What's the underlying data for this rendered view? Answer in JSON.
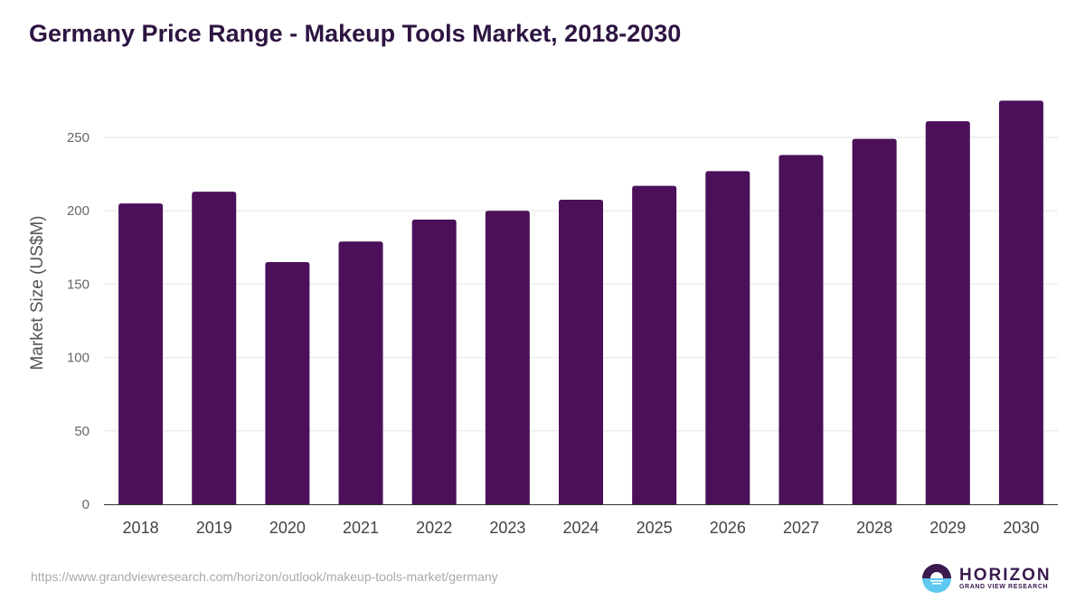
{
  "chart_data": {
    "type": "bar",
    "title": "Germany Price Range - Makeup Tools Market, 2018-2030",
    "xlabel": "",
    "ylabel": "Market Size (US$M)",
    "categories": [
      "2018",
      "2019",
      "2020",
      "2021",
      "2022",
      "2023",
      "2024",
      "2025",
      "2026",
      "2027",
      "2028",
      "2029",
      "2030"
    ],
    "values": [
      205,
      213,
      165,
      179,
      194,
      200,
      207.5,
      217,
      227,
      238,
      249,
      261,
      275
    ],
    "ylim": [
      0,
      275
    ],
    "yticks": [
      0,
      50,
      100,
      150,
      200,
      250
    ],
    "grid": true,
    "bar_color": "#4b1059"
  },
  "footer": {
    "url": "https://www.grandviewresearch.com/horizon/outlook/makeup-tools-market/germany"
  },
  "logo": {
    "name": "HORIZON",
    "sub": "GRAND VIEW RESEARCH"
  }
}
